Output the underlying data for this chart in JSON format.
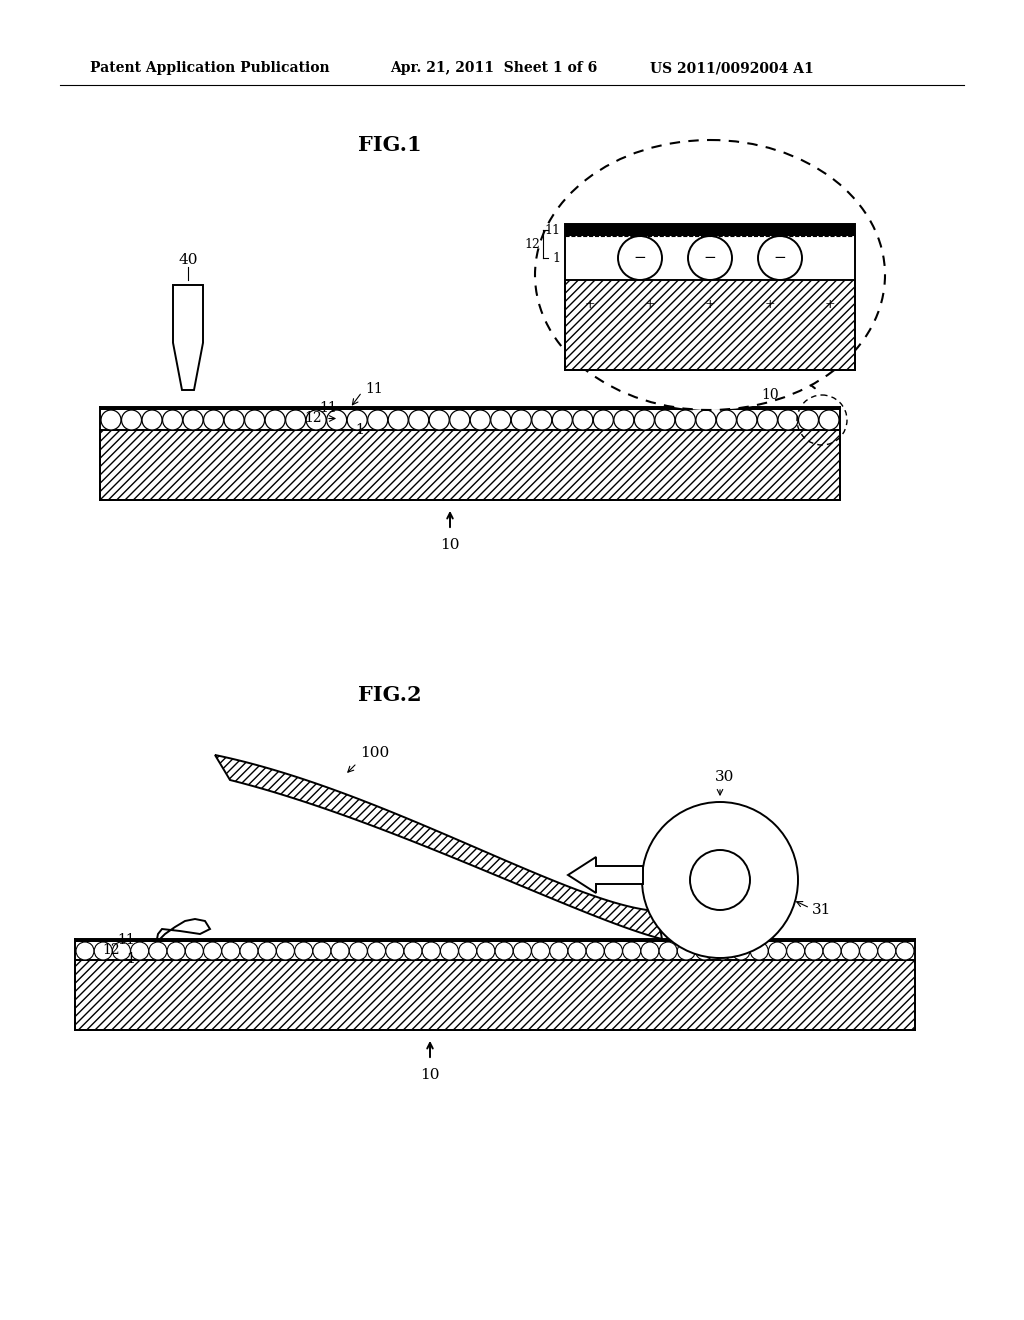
{
  "background_color": "#ffffff",
  "header_left": "Patent Application Publication",
  "header_mid": "Apr. 21, 2011  Sheet 1 of 6",
  "header_right": "US 2011/0092004 A1",
  "fig1_title": "FIG.1",
  "fig2_title": "FIG.2",
  "line_color": "#000000",
  "label_fontsize": 11,
  "title_fontsize": 15,
  "header_fontsize": 10,
  "lw": 1.4
}
